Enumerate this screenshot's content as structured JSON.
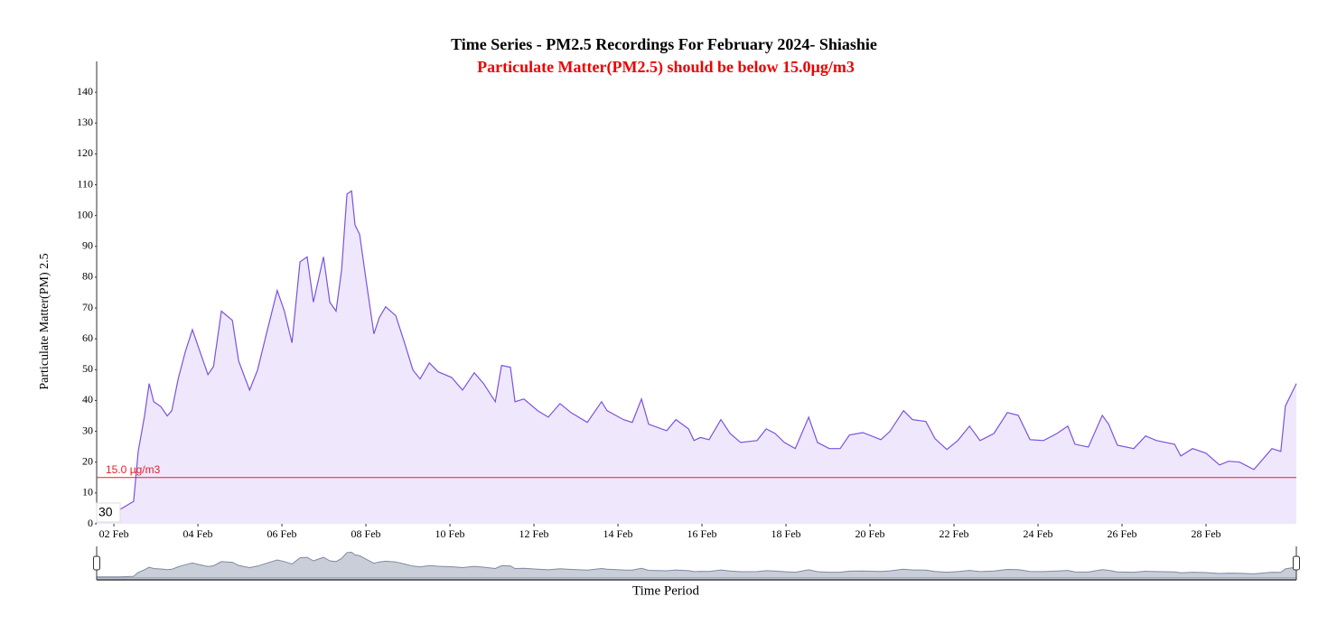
{
  "chart_data": {
    "type": "area",
    "title": "Time Series - PM2.5 Recordings For February 2024- Shiashie",
    "subtitle": "Particulate Matter(PM2.5) should be below 15.0µg/m3",
    "y_label": "Particulate Matter(PM) 2.5",
    "x_label": "Time Period",
    "range_box_label": "30",
    "threshold": {
      "value": 15,
      "label": "15.0 µg/m3",
      "color": "#e8202a"
    },
    "x": [
      1.59,
      2.15,
      2.47,
      2.58,
      2.73,
      2.84,
      2.95,
      3.12,
      3.27,
      3.38,
      3.53,
      3.7,
      3.87,
      4.02,
      4.24,
      4.37,
      4.56,
      4.82,
      4.97,
      5.23,
      5.42,
      5.63,
      5.89,
      6.06,
      6.24,
      6.43,
      6.6,
      6.75,
      6.99,
      7.14,
      7.29,
      7.42,
      7.55,
      7.66,
      7.74,
      7.85,
      8.0,
      8.19,
      8.32,
      8.47,
      8.71,
      8.92,
      9.12,
      9.29,
      9.51,
      9.72,
      10.04,
      10.3,
      10.58,
      10.8,
      11.08,
      11.23,
      11.44,
      11.55,
      11.76,
      12.09,
      12.34,
      12.62,
      12.88,
      13.27,
      13.61,
      13.74,
      14.13,
      14.34,
      14.56,
      14.73,
      15.16,
      15.38,
      15.68,
      15.81,
      15.96,
      16.17,
      16.45,
      16.67,
      16.92,
      17.31,
      17.53,
      17.74,
      17.96,
      18.22,
      18.54,
      18.75,
      19.03,
      19.29,
      19.51,
      19.83,
      20.26,
      20.47,
      20.8,
      21.01,
      21.33,
      21.55,
      21.83,
      22.09,
      22.37,
      22.62,
      22.95,
      23.27,
      23.53,
      23.81,
      24.13,
      24.45,
      24.71,
      24.88,
      25.2,
      25.53,
      25.68,
      25.89,
      26.28,
      26.56,
      26.82,
      27.25,
      27.4,
      27.68,
      28.0,
      28.32,
      28.54,
      28.8,
      29.14,
      29.57,
      29.78,
      29.89,
      30.15
    ],
    "series": [
      {
        "name": "PM2.5",
        "color": "#7b52e0",
        "fill": "#efe8fc",
        "values": [
          4.4,
          4.7,
          7.3,
          23.5,
          35,
          45.5,
          39.6,
          38,
          35,
          36.7,
          47,
          55.8,
          63,
          57,
          48.4,
          51,
          69,
          66,
          52.8,
          43.4,
          49.9,
          61.6,
          75.7,
          69,
          58.7,
          85,
          86.6,
          71.9,
          86.6,
          71.9,
          69,
          82.2,
          107,
          108,
          96.9,
          93.9,
          79.3,
          61.6,
          66.9,
          70.4,
          67.5,
          58.7,
          49.9,
          47,
          52.2,
          49.3,
          47.5,
          43.4,
          49,
          45.5,
          39.6,
          51.4,
          50.8,
          39.6,
          40.5,
          36.7,
          34.6,
          39,
          36.1,
          32.9,
          39.6,
          36.7,
          33.8,
          32.9,
          40.5,
          32.3,
          30.2,
          33.8,
          30.8,
          27,
          28,
          27.3,
          33.8,
          29.3,
          26.4,
          27,
          30.8,
          29.3,
          26.4,
          24.4,
          34.6,
          26.4,
          24.4,
          24.4,
          28.8,
          29.6,
          27.3,
          29.9,
          36.7,
          33.8,
          33.2,
          27.6,
          24.1,
          27,
          31.7,
          27,
          29.3,
          36.1,
          35.2,
          27.3,
          27,
          29.3,
          31.7,
          25.8,
          24.9,
          35.2,
          32.3,
          25.5,
          24.4,
          28.5,
          27,
          25.8,
          22,
          24.4,
          22.9,
          19.1,
          20.3,
          20,
          17.6,
          24.4,
          23.5,
          38.2,
          45.5
        ]
      }
    ],
    "xlim": [
      1.59,
      30.15
    ],
    "xticks": [
      {
        "value": 2,
        "label": "02 Feb"
      },
      {
        "value": 4,
        "label": "04 Feb"
      },
      {
        "value": 6,
        "label": "06 Feb"
      },
      {
        "value": 8,
        "label": "08 Feb"
      },
      {
        "value": 10,
        "label": "10 Feb"
      },
      {
        "value": 12,
        "label": "12 Feb"
      },
      {
        "value": 14,
        "label": "14 Feb"
      },
      {
        "value": 16,
        "label": "16 Feb"
      },
      {
        "value": 18,
        "label": "18 Feb"
      },
      {
        "value": 20,
        "label": "20 Feb"
      },
      {
        "value": 22,
        "label": "22 Feb"
      },
      {
        "value": 24,
        "label": "24 Feb"
      },
      {
        "value": 26,
        "label": "26 Feb"
      },
      {
        "value": 28,
        "label": "28 Feb"
      }
    ],
    "ylim": [
      0,
      150
    ],
    "yticks": [
      0,
      10,
      20,
      30,
      40,
      50,
      60,
      70,
      80,
      90,
      100,
      110,
      120,
      130,
      140
    ]
  }
}
